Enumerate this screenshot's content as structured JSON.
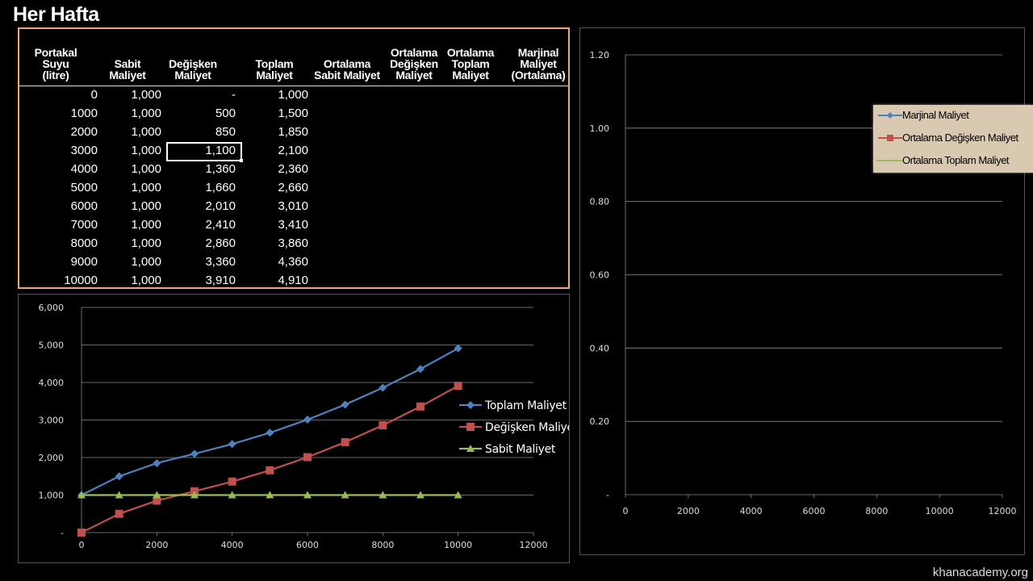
{
  "page": {
    "title": "Her Hafta",
    "watermark": "khanacademy.org"
  },
  "table": {
    "headers": [
      "Portakal\nSuyu\n(litre)",
      "Sabit\nMaliyet",
      "Değişken\nMaliyet",
      "Toplam\nMaliyet",
      "Ortalama\nSabit Maliyet",
      "Ortalama\nDeğişken\nMaliyet",
      "Ortalama\nToplam\nMaliyet",
      "Marjinal\nMaliyet\n(Ortalama)"
    ],
    "rows": [
      [
        "0",
        "1,000",
        "-",
        "1,000"
      ],
      [
        "1000",
        "1,000",
        "500",
        "1,500"
      ],
      [
        "2000",
        "1,000",
        "850",
        "1,850"
      ],
      [
        "3000",
        "1,000",
        "1,100",
        "2,100"
      ],
      [
        "4000",
        "1,000",
        "1,360",
        "2,360"
      ],
      [
        "5000",
        "1,000",
        "1,660",
        "2,660"
      ],
      [
        "6000",
        "1,000",
        "2,010",
        "3,010"
      ],
      [
        "7000",
        "1,000",
        "2,410",
        "3,410"
      ],
      [
        "8000",
        "1,000",
        "2,860",
        "3,860"
      ],
      [
        "9000",
        "1,000",
        "3,360",
        "4,360"
      ],
      [
        "10000",
        "1,000",
        "3,910",
        "4,910"
      ]
    ],
    "selected_cell": {
      "row": 3,
      "col": 2
    }
  },
  "chart_data": [
    {
      "type": "line",
      "x": [
        0,
        1000,
        2000,
        3000,
        4000,
        5000,
        6000,
        7000,
        8000,
        9000,
        10000
      ],
      "series": [
        {
          "name": "Toplam Maliyet",
          "color": "#4f81bd",
          "marker": "diamond",
          "values": [
            1000,
            1500,
            1850,
            2100,
            2360,
            2660,
            3010,
            3410,
            3860,
            4360,
            4910
          ]
        },
        {
          "name": "Değişken Maliyet",
          "color": "#c0504d",
          "marker": "square",
          "values": [
            0,
            500,
            850,
            1100,
            1360,
            1660,
            2010,
            2410,
            2860,
            3360,
            3910
          ]
        },
        {
          "name": "Sabit Maliyet",
          "color": "#9bbb59",
          "marker": "triangle",
          "values": [
            1000,
            1000,
            1000,
            1000,
            1000,
            1000,
            1000,
            1000,
            1000,
            1000,
            1000
          ]
        }
      ],
      "xlim": [
        0,
        12000
      ],
      "ylim": [
        0,
        6000
      ],
      "x_ticks": [
        "0",
        "2000",
        "4000",
        "6000",
        "8000",
        "10000",
        "12000"
      ],
      "y_ticks": [
        "-",
        "1,000",
        "2,000",
        "3,000",
        "4,000",
        "5,000",
        "6,000"
      ],
      "grid": true,
      "legend_position": "right"
    },
    {
      "type": "line",
      "x": [],
      "series": [
        {
          "name": "Marjinal Maliyet",
          "color": "#4f81bd",
          "marker": "diamond",
          "values": []
        },
        {
          "name": "Ortalama Değişken Maliyet",
          "color": "#c0504d",
          "marker": "square",
          "values": []
        },
        {
          "name": "Ortalama Toplam Maliyet",
          "color": "#9bbb59",
          "marker": "triangle",
          "values": []
        }
      ],
      "xlim": [
        0,
        12000
      ],
      "ylim": [
        0,
        1.2
      ],
      "x_ticks": [
        "0",
        "2000",
        "4000",
        "6000",
        "8000",
        "10000",
        "12000"
      ],
      "y_ticks": [
        "-",
        "0.20",
        "0.40",
        "0.60",
        "0.80",
        "1.00",
        "1.20"
      ],
      "grid": true,
      "legend_position": "top-right"
    }
  ]
}
